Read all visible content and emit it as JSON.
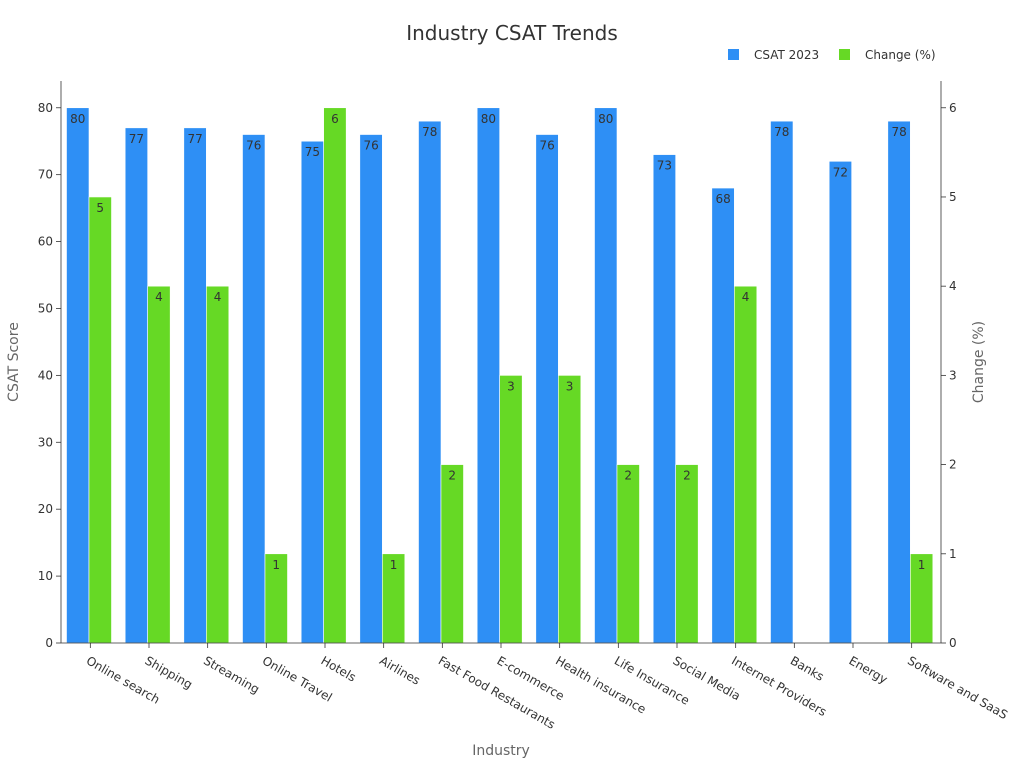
{
  "chart_data": {
    "type": "bar",
    "title": "Industry CSAT Trends",
    "xlabel": "Industry",
    "ylabel": "CSAT Score",
    "y2label": "Change (%)",
    "ylim": [
      0,
      84
    ],
    "y2lim": [
      0,
      6.3
    ],
    "yticks": [
      0,
      10,
      20,
      30,
      40,
      50,
      60,
      70,
      80
    ],
    "y2ticks": [
      0,
      1,
      2,
      3,
      4,
      5,
      6
    ],
    "grid": false,
    "legend_position": "top-right",
    "categories": [
      "Online search",
      "Shipping",
      "Streaming",
      "Online Travel",
      "Hotels",
      "Airlines",
      "Fast Food Restaurants",
      "E-commerce",
      "Health insurance",
      "Life Insurance",
      "Social Media",
      "Internet Providers",
      "Banks",
      "Energy",
      "Software and SaaS"
    ],
    "series": [
      {
        "name": "CSAT 2023",
        "axis": "left",
        "color": "#2e8ff5",
        "values": [
          80,
          77,
          77,
          76,
          75,
          76,
          78,
          80,
          76,
          80,
          73,
          68,
          78,
          72,
          78
        ],
        "labels": [
          "80",
          "77",
          "77",
          "76",
          "75",
          "76",
          "78",
          "80",
          "76",
          "80",
          "73",
          "68",
          "78",
          "72",
          "78"
        ]
      },
      {
        "name": "Change (%)",
        "axis": "right",
        "color": "#66d925",
        "values": [
          5,
          4,
          4,
          1,
          6,
          1,
          2,
          3,
          3,
          2,
          2,
          4,
          0,
          0,
          1
        ],
        "labels": [
          "5",
          "4",
          "4",
          "1",
          "6",
          "1",
          "2",
          "3",
          "3",
          "2",
          "2",
          "4",
          "",
          "",
          "1"
        ]
      }
    ]
  }
}
